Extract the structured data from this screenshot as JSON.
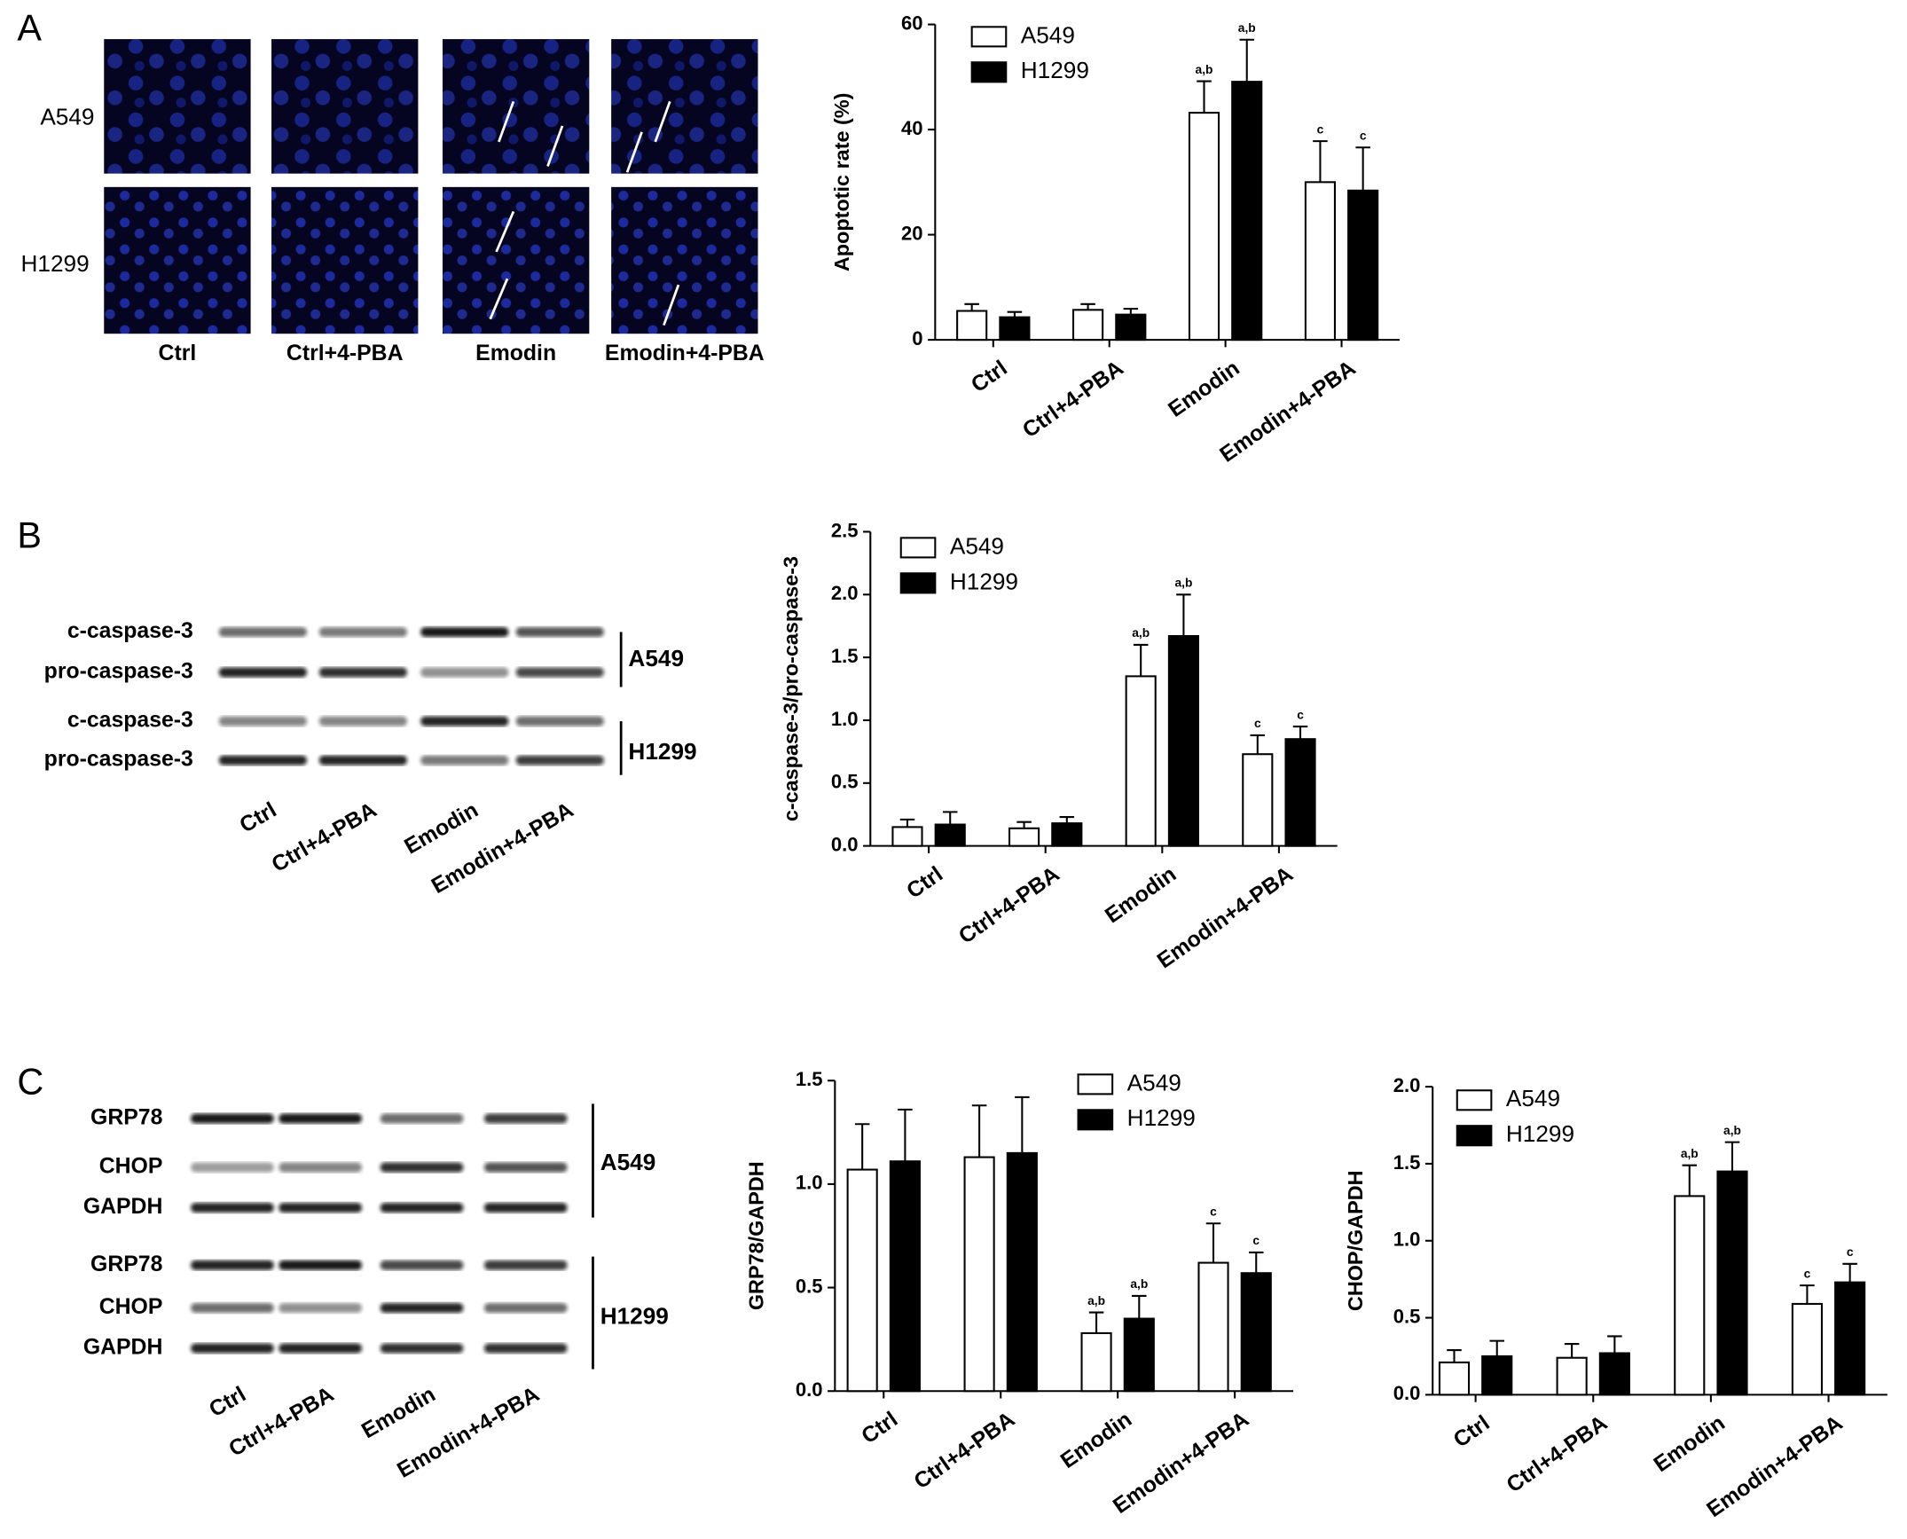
{
  "figure": {
    "panels": [
      "A",
      "B",
      "C"
    ],
    "micrograph": {
      "rows": [
        "A549",
        "H1299"
      ],
      "columns": [
        "Ctrl",
        "Ctrl+4-PBA",
        "Emodin",
        "Emodin+4-PBA"
      ]
    },
    "blot_b": {
      "rows": [
        "c-caspase-3",
        "pro-caspase-3",
        "c-caspase-3",
        "pro-caspase-3"
      ],
      "groups": [
        "A549",
        "H1299"
      ],
      "lanes": [
        "Ctrl",
        "Ctrl+4-PBA",
        "Emodin",
        "Emodin+4-PBA"
      ]
    },
    "blot_c": {
      "rows": [
        "GRP78",
        "CHOP",
        "GAPDH",
        "GRP78",
        "CHOP",
        "GAPDH"
      ],
      "groups": [
        "A549",
        "H1299"
      ],
      "lanes": [
        "Ctrl",
        "Ctrl+4-PBA",
        "Emodin",
        "Emodin+4-PBA"
      ]
    }
  },
  "chart_data": [
    {
      "type": "bar",
      "ylabel": "Apoptotic rate (%)",
      "categories": [
        "Ctrl",
        "Ctrl+4-PBA",
        "Emodin",
        "Emodin+4-PBA"
      ],
      "series": [
        {
          "name": "A549",
          "color": "#ffffff",
          "edgecolor": "#000000",
          "values": [
            5.5,
            5.7,
            43.2,
            30.0
          ],
          "errors": [
            1.3,
            1.1,
            6.0,
            7.8
          ],
          "annotations": [
            null,
            null,
            "a,b",
            "c"
          ]
        },
        {
          "name": "H1299",
          "color": "#000000",
          "edgecolor": "#000000",
          "values": [
            4.3,
            4.8,
            49.1,
            28.4
          ],
          "errors": [
            1.0,
            1.1,
            8.0,
            8.2
          ],
          "annotations": [
            null,
            null,
            "a,b",
            "c"
          ]
        }
      ],
      "ylim": [
        0,
        60
      ],
      "yticks": [
        0,
        20,
        40,
        60
      ],
      "legend": "upper left"
    },
    {
      "type": "bar",
      "ylabel": "c-caspase-3/pro-caspase-3",
      "categories": [
        "Ctrl",
        "Ctrl+4-PBA",
        "Emodin",
        "Emodin+4-PBA"
      ],
      "series": [
        {
          "name": "A549",
          "color": "#ffffff",
          "edgecolor": "#000000",
          "values": [
            0.15,
            0.14,
            1.35,
            0.73
          ],
          "errors": [
            0.06,
            0.05,
            0.25,
            0.15
          ],
          "annotations": [
            null,
            null,
            "a,b",
            "c"
          ]
        },
        {
          "name": "H1299",
          "color": "#000000",
          "edgecolor": "#000000",
          "values": [
            0.17,
            0.18,
            1.67,
            0.85
          ],
          "errors": [
            0.1,
            0.05,
            0.33,
            0.1
          ],
          "annotations": [
            null,
            null,
            "a,b",
            "c"
          ]
        }
      ],
      "ylim": [
        0,
        2.5
      ],
      "yticks": [
        {
          "value": 0,
          "label": "0.0"
        },
        0.5,
        {
          "value": 1,
          "label": "1.0"
        },
        1.5,
        {
          "value": 2,
          "label": "2.0"
        },
        2.5
      ],
      "legend": "upper left"
    },
    {
      "type": "bar",
      "ylabel": "GRP78/GAPDH",
      "categories": [
        "Ctrl",
        "Ctrl+4-PBA",
        "Emodin",
        "Emodin+4-PBA"
      ],
      "series": [
        {
          "name": "A549",
          "color": "#ffffff",
          "edgecolor": "#000000",
          "values": [
            1.07,
            1.13,
            0.28,
            0.62
          ],
          "errors": [
            0.22,
            0.25,
            0.1,
            0.19
          ],
          "annotations": [
            null,
            null,
            "a,b",
            "c"
          ]
        },
        {
          "name": "H1299",
          "color": "#000000",
          "edgecolor": "#000000",
          "values": [
            1.11,
            1.15,
            0.35,
            0.57
          ],
          "errors": [
            0.25,
            0.27,
            0.11,
            0.1
          ],
          "annotations": [
            null,
            null,
            "a,b",
            "c"
          ]
        }
      ],
      "ylim": [
        0,
        1.5
      ],
      "yticks": [
        {
          "value": 0,
          "label": "0.0"
        },
        0.5,
        {
          "value": 1,
          "label": "1.0"
        },
        1.5
      ],
      "legend": "upper right"
    },
    {
      "type": "bar",
      "ylabel": "CHOP/GAPDH",
      "categories": [
        "Ctrl",
        "Ctrl+4-PBA",
        "Emodin",
        "Emodin+4-PBA"
      ],
      "series": [
        {
          "name": "A549",
          "color": "#ffffff",
          "edgecolor": "#000000",
          "values": [
            0.21,
            0.24,
            1.29,
            0.59
          ],
          "errors": [
            0.08,
            0.09,
            0.2,
            0.12
          ],
          "annotations": [
            null,
            null,
            "a,b",
            "c"
          ]
        },
        {
          "name": "H1299",
          "color": "#000000",
          "edgecolor": "#000000",
          "values": [
            0.25,
            0.27,
            1.45,
            0.73
          ],
          "errors": [
            0.1,
            0.11,
            0.19,
            0.12
          ],
          "annotations": [
            null,
            null,
            "a,b",
            "c"
          ]
        }
      ],
      "ylim": [
        0,
        2.0
      ],
      "yticks": [
        {
          "value": 0,
          "label": "0.0"
        },
        0.5,
        {
          "value": 1,
          "label": "1.0"
        },
        1.5,
        {
          "value": 2,
          "label": "2.0"
        }
      ],
      "legend": "upper left"
    }
  ]
}
